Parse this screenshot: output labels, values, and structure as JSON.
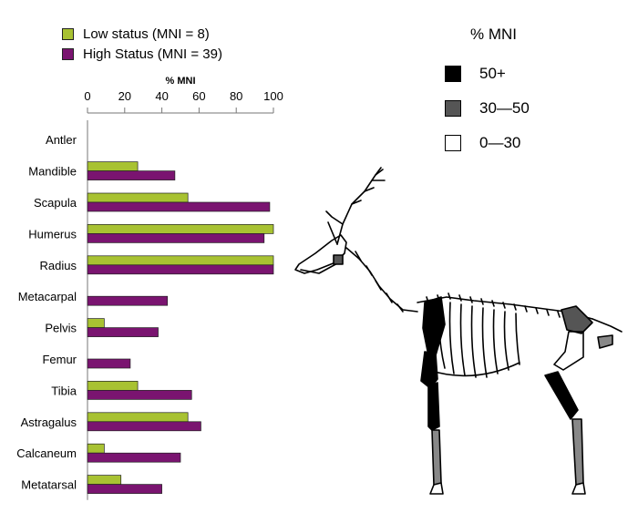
{
  "legend": {
    "items": [
      {
        "label": "Low status (MNI = 8)",
        "color": "#a8c232"
      },
      {
        "label": "High Status (MNI = 39)",
        "color": "#7a1470"
      }
    ]
  },
  "key": {
    "title": "% MNI",
    "items": [
      {
        "label": "50+",
        "color": "#000000"
      },
      {
        "label": "30—50",
        "color": "#555555"
      },
      {
        "label": "0—30",
        "color": "#ffffff"
      }
    ]
  },
  "chart_data": {
    "type": "bar",
    "orientation": "horizontal",
    "title": "% MNI",
    "xlim": [
      0,
      100
    ],
    "xticks": [
      0,
      20,
      40,
      60,
      80,
      100
    ],
    "categories": [
      "Antler",
      "Mandible",
      "Scapula",
      "Humerus",
      "Radius",
      "Metacarpal",
      "Pelvis",
      "Femur",
      "Tibia",
      "Astragalus",
      "Calcaneum",
      "Metatarsal"
    ],
    "series": [
      {
        "name": "Low status (MNI = 8)",
        "color": "#a8c232",
        "values": [
          0,
          27,
          54,
          100,
          100,
          0,
          9,
          0,
          27,
          54,
          9,
          18
        ]
      },
      {
        "name": "High Status (MNI = 39)",
        "color": "#7a1470",
        "values": [
          0,
          47,
          98,
          95,
          100,
          43,
          38,
          23,
          56,
          61,
          50,
          40
        ]
      }
    ]
  }
}
